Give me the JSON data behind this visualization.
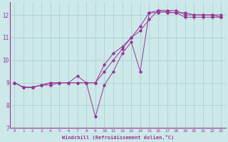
{
  "xlabel": "Windchill (Refroidissement éolien,°C)",
  "bg_color": "#cce8e8",
  "line_color": "#993399",
  "grid_color": "#aacccc",
  "xlim": [
    -0.5,
    23.5
  ],
  "ylim": [
    7,
    12.55
  ],
  "yticks": [
    7,
    8,
    9,
    10,
    11,
    12
  ],
  "xticks": [
    0,
    1,
    2,
    3,
    4,
    5,
    6,
    7,
    8,
    9,
    10,
    11,
    12,
    13,
    14,
    15,
    16,
    17,
    18,
    19,
    20,
    21,
    22,
    23
  ],
  "lines": [
    {
      "x": [
        0,
        1,
        2,
        3,
        4,
        5,
        6,
        7,
        8,
        9,
        10,
        11,
        12,
        13,
        14,
        15,
        16,
        17,
        18,
        19,
        20,
        21,
        22,
        23
      ],
      "y": [
        9.0,
        8.8,
        8.8,
        8.9,
        8.9,
        9.0,
        9.0,
        9.3,
        9.0,
        7.5,
        8.9,
        9.5,
        10.3,
        10.8,
        9.5,
        12.1,
        12.1,
        12.15,
        12.1,
        11.9,
        11.9,
        11.9,
        11.9,
        11.9
      ]
    },
    {
      "x": [
        0,
        1,
        2,
        3,
        4,
        5,
        6,
        7,
        8,
        9,
        10,
        11,
        12,
        13,
        14,
        15,
        16,
        17,
        18,
        19,
        20,
        21,
        22,
        23
      ],
      "y": [
        9.0,
        8.8,
        8.8,
        8.9,
        9.0,
        9.0,
        9.0,
        9.0,
        9.0,
        9.0,
        9.8,
        10.3,
        10.6,
        11.0,
        11.5,
        12.1,
        12.2,
        12.1,
        12.1,
        12.1,
        12.0,
        12.0,
        12.0,
        12.0
      ]
    },
    {
      "x": [
        0,
        1,
        2,
        3,
        4,
        5,
        6,
        7,
        8,
        9,
        10,
        11,
        12,
        13,
        14,
        15,
        16,
        17,
        18,
        19,
        20,
        21,
        22,
        23
      ],
      "y": [
        9.0,
        8.8,
        8.8,
        8.9,
        9.0,
        9.0,
        9.0,
        9.0,
        9.0,
        9.0,
        9.5,
        10.0,
        10.5,
        11.0,
        11.3,
        11.8,
        12.2,
        12.2,
        12.2,
        12.0,
        12.0,
        12.0,
        12.0,
        11.9
      ]
    }
  ]
}
